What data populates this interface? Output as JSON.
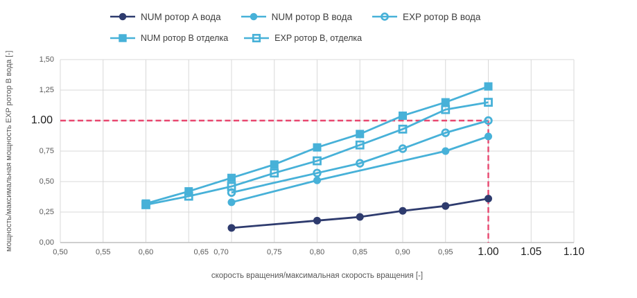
{
  "colors": {
    "background": "#ffffff",
    "grid": "#d8d8d8",
    "axis_line": "#bfbfbf",
    "navy_series": "#2e3b6e",
    "blue_series": "#47b1d8",
    "reference_pink": "#e8476f",
    "tick_text": "#595959",
    "emphasis_text": "#1c1c1c"
  },
  "legend": {
    "rows": [
      {
        "items": [
          {
            "label": "NUM ротор A вода",
            "series": "num_a_voda"
          },
          {
            "label": "NUM ротор B вода",
            "series": "num_b_voda"
          },
          {
            "label": "EXP ротор B вода",
            "series": "exp_b_voda"
          }
        ]
      },
      {
        "items": [
          {
            "label": "NUM ротор B отделка",
            "series": "num_b_otdelka"
          },
          {
            "label": "EXP ротор B, отделка",
            "series": "exp_b_otdelka"
          }
        ]
      }
    ]
  },
  "chart_data": {
    "type": "line",
    "title": "",
    "xlabel": "скорость вращения/максимальная скорость вращения [-]",
    "ylabel": "мощность/максимальная мощность EXP ротор B вода [-]",
    "xlim": [
      0.5,
      1.1
    ],
    "ylim": [
      0.0,
      1.5
    ],
    "grid": true,
    "legend_position": "top",
    "x_ticks": [
      {
        "label": "0,50",
        "v": 0.5
      },
      {
        "label": "0,55",
        "v": 0.55
      },
      {
        "label": "0,60",
        "v": 0.6
      },
      {
        "label": "0,65",
        "v": 0.65,
        "dx": 18
      },
      {
        "label": "0,70",
        "v": 0.7,
        "dx": -15
      },
      {
        "label": "0,75",
        "v": 0.75
      },
      {
        "label": "0,80",
        "v": 0.8
      },
      {
        "label": "0,85",
        "v": 0.85
      },
      {
        "label": "0,90",
        "v": 0.9
      },
      {
        "label": "0,95",
        "v": 0.95
      },
      {
        "label": "1.00",
        "v": 1.0,
        "emph": true
      },
      {
        "label": "1.05",
        "v": 1.05,
        "emph": true
      },
      {
        "label": "1.10",
        "v": 1.1,
        "emph": true
      }
    ],
    "y_ticks": [
      {
        "label": "0,00",
        "v": 0.0
      },
      {
        "label": "0,25",
        "v": 0.25
      },
      {
        "label": "0,50",
        "v": 0.5
      },
      {
        "label": "0,75",
        "v": 0.75
      },
      {
        "label": "1.00",
        "v": 1.0,
        "emph": true
      },
      {
        "label": "1,25",
        "v": 1.25
      },
      {
        "label": "1,50",
        "v": 1.5
      }
    ],
    "series": [
      {
        "id": "num_a_voda",
        "name": "NUM ротор A вода",
        "color": "#2e3b6e",
        "marker": "circle-filled",
        "points": [
          [
            0.7,
            0.12
          ],
          [
            0.8,
            0.18
          ],
          [
            0.85,
            0.21
          ],
          [
            0.9,
            0.26
          ],
          [
            0.95,
            0.3
          ],
          [
            1.0,
            0.36
          ]
        ]
      },
      {
        "id": "num_b_voda",
        "name": "NUM ротор B вода",
        "color": "#47b1d8",
        "marker": "circle-filled",
        "points": [
          [
            0.7,
            0.33
          ],
          [
            0.8,
            0.51
          ],
          [
            0.95,
            0.75
          ],
          [
            1.0,
            0.87
          ]
        ]
      },
      {
        "id": "exp_b_voda",
        "name": "EXP ротор B вода",
        "color": "#47b1d8",
        "marker": "circle-open",
        "points": [
          [
            0.7,
            0.41
          ],
          [
            0.8,
            0.57
          ],
          [
            0.85,
            0.65
          ],
          [
            0.9,
            0.77
          ],
          [
            0.95,
            0.9
          ],
          [
            1.0,
            1.0
          ]
        ]
      },
      {
        "id": "num_b_otdelka",
        "name": "NUM ротор B отделка",
        "color": "#47b1d8",
        "marker": "square-filled",
        "points": [
          [
            0.6,
            0.32
          ],
          [
            0.65,
            0.42
          ],
          [
            0.7,
            0.53
          ],
          [
            0.75,
            0.64
          ],
          [
            0.8,
            0.78
          ],
          [
            0.85,
            0.89
          ],
          [
            0.9,
            1.04
          ],
          [
            0.95,
            1.15
          ],
          [
            1.0,
            1.28
          ]
        ]
      },
      {
        "id": "exp_b_otdelka",
        "name": "EXP ротор B, отделка",
        "color": "#47b1d8",
        "marker": "square-open",
        "points": [
          [
            0.6,
            0.31
          ],
          [
            0.65,
            0.38
          ],
          [
            0.7,
            0.46
          ],
          [
            0.75,
            0.57
          ],
          [
            0.8,
            0.67
          ],
          [
            0.85,
            0.8
          ],
          [
            0.9,
            0.93
          ],
          [
            0.95,
            1.09
          ],
          [
            1.0,
            1.15
          ]
        ]
      }
    ],
    "reference_lines": {
      "color": "#e8476f",
      "horizontal": {
        "y": 1.0,
        "x_from": 0.5,
        "x_to": 1.0
      },
      "vertical": {
        "x": 1.0,
        "y_from": 0.0,
        "y_to": 1.0
      }
    }
  }
}
